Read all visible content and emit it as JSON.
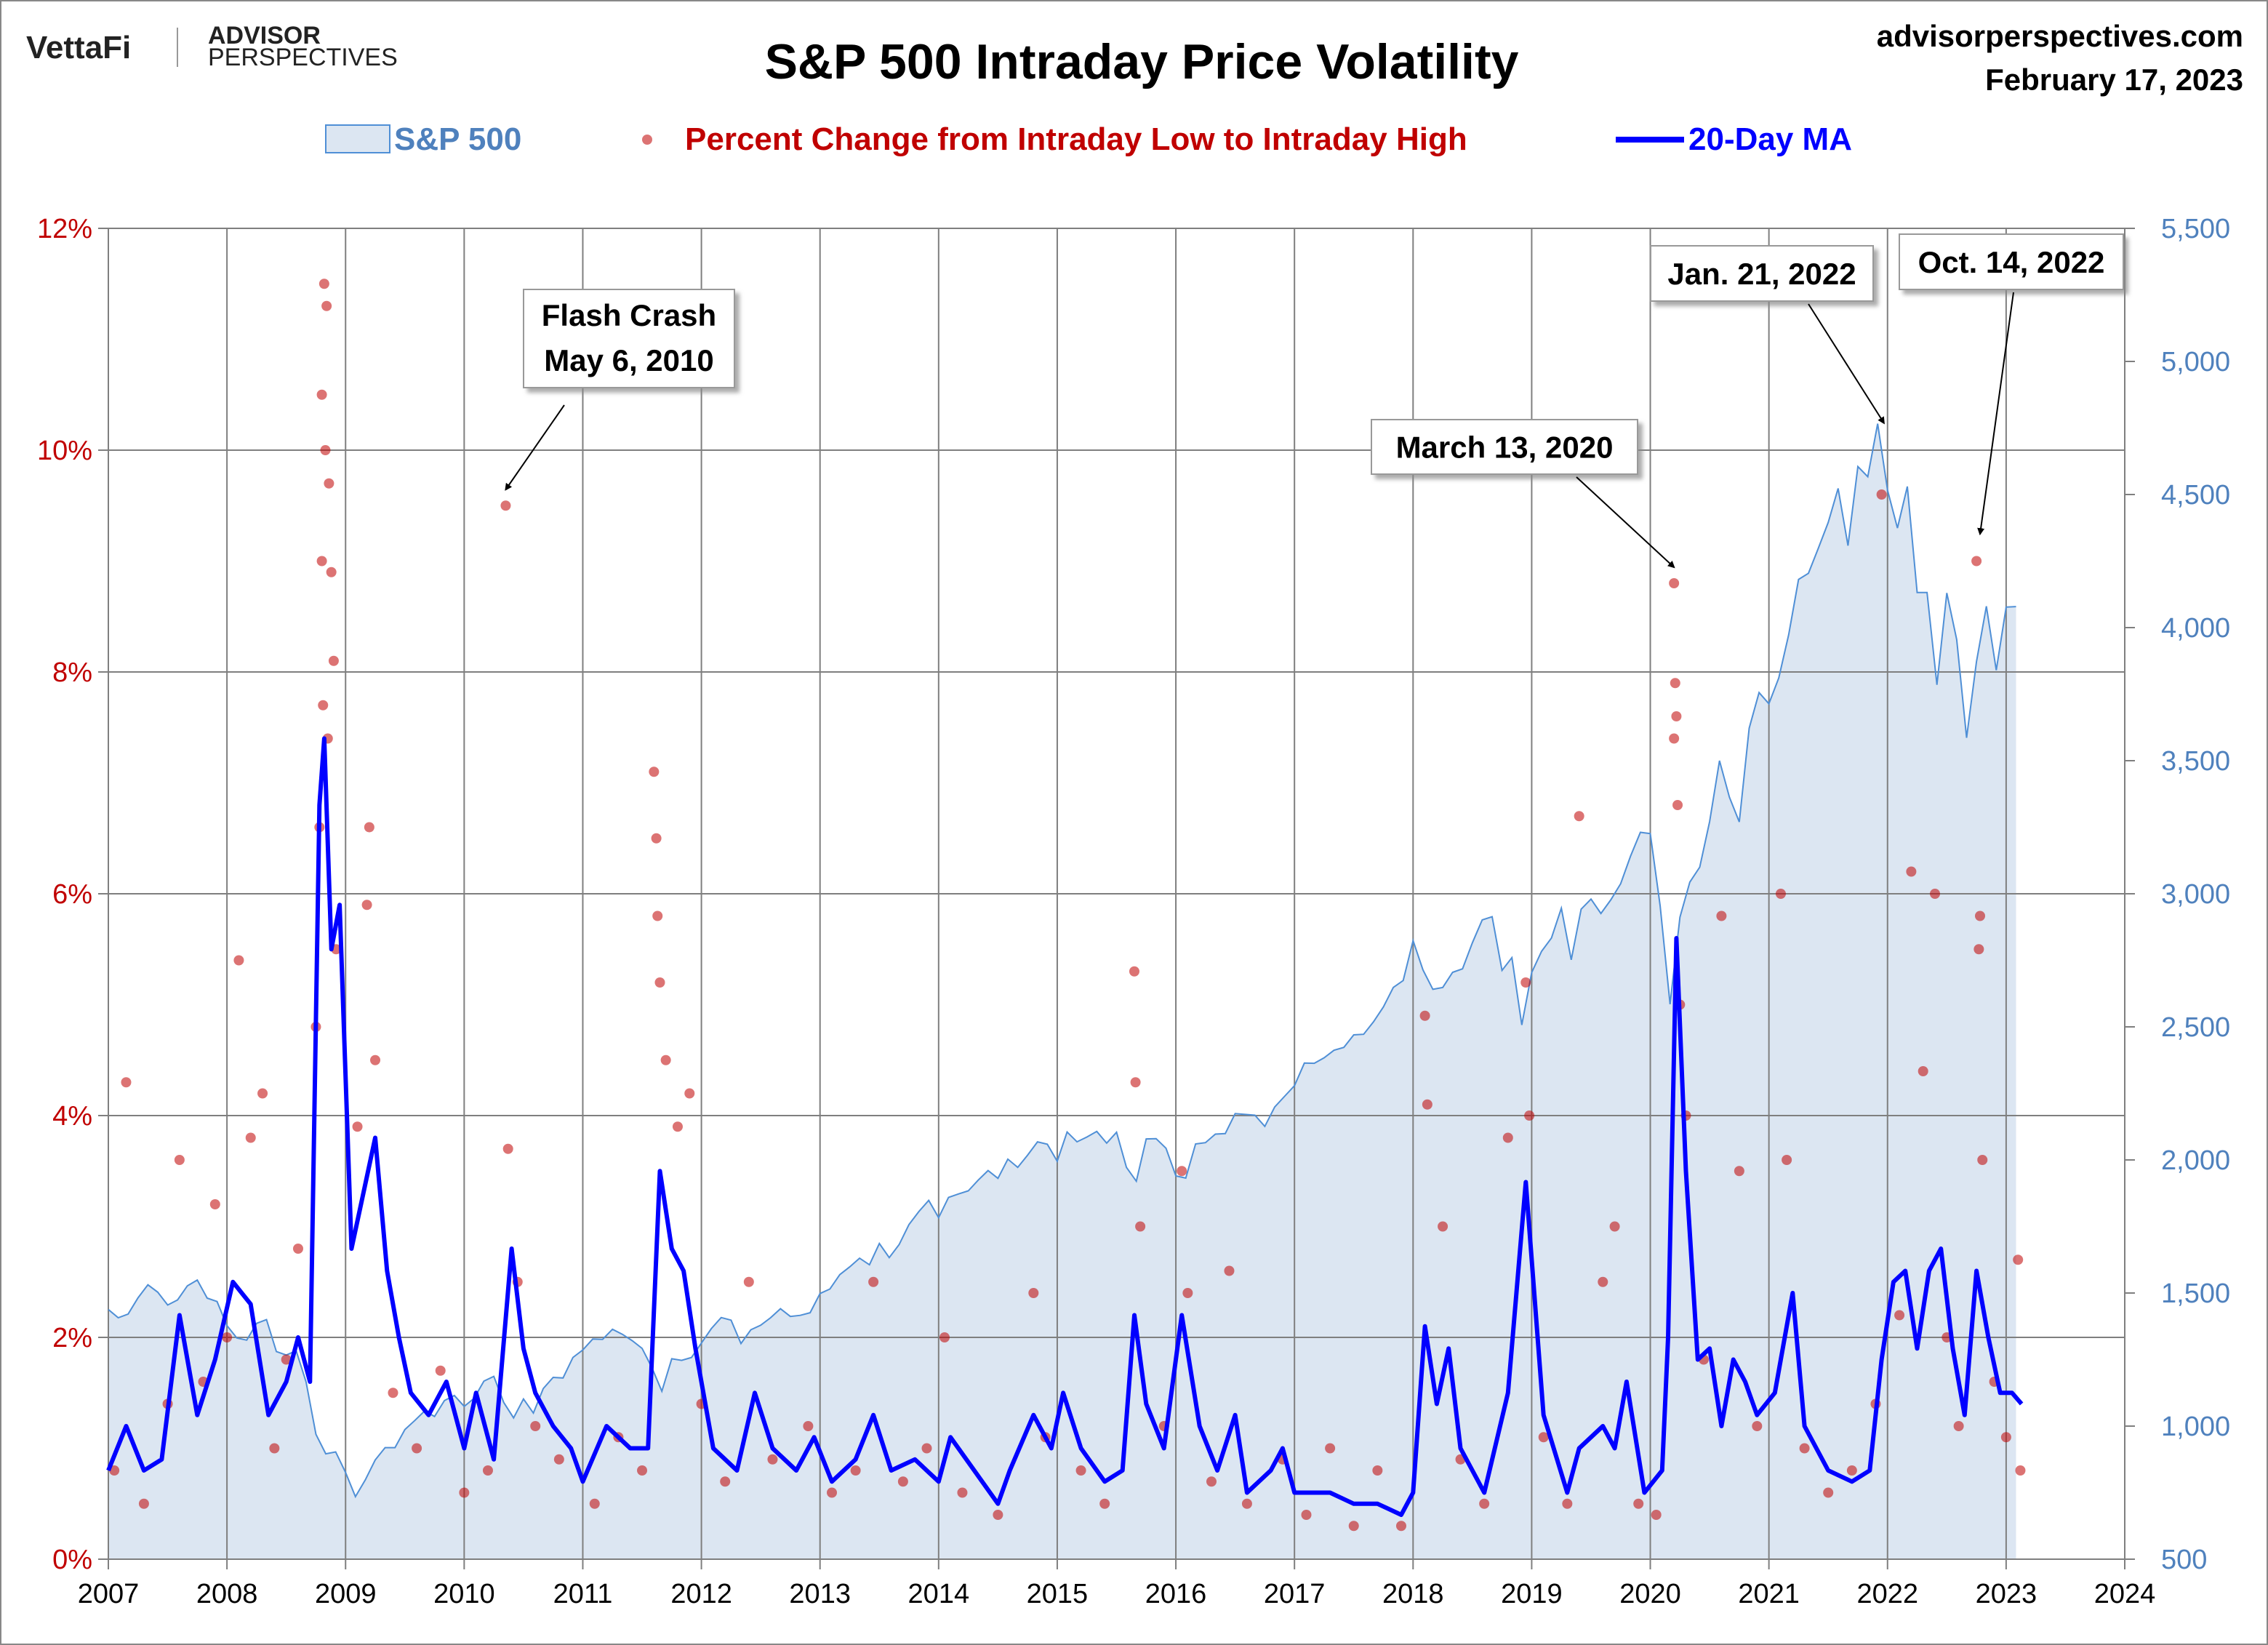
{
  "header": {
    "logo_vettafi": "VettaFi",
    "logo_advisor": "ADVISOR",
    "logo_perspectives": "PERSPECTIVES",
    "site": "advisorperspectives.com",
    "date": "February 17, 2023"
  },
  "chart_data": {
    "type": "line",
    "title": "S&P 500 Intraday Price Volatility",
    "legend_position": "top",
    "grid": true,
    "legend": {
      "sp500": "S&P 500",
      "scatter": "Percent Change from Intraday Low to Intraday High",
      "ma": "20-Day MA"
    },
    "colors": {
      "sp500_fill": "#dce6f2",
      "sp500_line": "#4f8fd6",
      "scatter": "#c00000",
      "ma": "#0000ff",
      "left_axis": "#c00000",
      "right_axis": "#4f81bd"
    },
    "x_ticks": [
      "2007",
      "2008",
      "2009",
      "2010",
      "2011",
      "2012",
      "2013",
      "2014",
      "2015",
      "2016",
      "2017",
      "2018",
      "2019",
      "2020",
      "2021",
      "2022",
      "2023",
      "2024"
    ],
    "xlim": [
      2007,
      2024
    ],
    "y_left": {
      "ticks": [
        "0%",
        "2%",
        "4%",
        "6%",
        "8%",
        "10%",
        "12%"
      ],
      "lim": [
        0,
        12
      ]
    },
    "y_right": {
      "ticks": [
        "500",
        "1,000",
        "1,500",
        "2,000",
        "2,500",
        "3,000",
        "3,500",
        "4,000",
        "4,500",
        "5,000",
        "5,500"
      ],
      "lim": [
        500,
        5500
      ]
    },
    "sp500_monthly": {
      "start": "2007-01",
      "values": [
        1438,
        1407,
        1421,
        1482,
        1531,
        1503,
        1455,
        1474,
        1527,
        1549,
        1481,
        1468,
        1378,
        1331,
        1323,
        1386,
        1400,
        1280,
        1267,
        1283,
        1166,
        969,
        896,
        903,
        826,
        735,
        798,
        873,
        919,
        919,
        987,
        1021,
        1057,
        1036,
        1096,
        1115,
        1074,
        1104,
        1169,
        1187,
        1089,
        1031,
        1102,
        1049,
        1141,
        1183,
        1181,
        1258,
        1286,
        1327,
        1326,
        1364,
        1345,
        1321,
        1292,
        1219,
        1131,
        1253,
        1247,
        1258,
        1312,
        1366,
        1408,
        1398,
        1310,
        1362,
        1379,
        1407,
        1441,
        1412,
        1416,
        1426,
        1498,
        1515,
        1569,
        1598,
        1631,
        1606,
        1686,
        1633,
        1682,
        1757,
        1806,
        1848,
        1783,
        1859,
        1872,
        1884,
        1924,
        1960,
        1931,
        2003,
        1972,
        2018,
        2068,
        2059,
        1995,
        2105,
        2068,
        2086,
        2107,
        2063,
        2104,
        1972,
        1920,
        2079,
        2080,
        2044,
        1940,
        1932,
        2060,
        2065,
        2097,
        2099,
        2174,
        2171,
        2168,
        2126,
        2199,
        2239,
        2279,
        2364,
        2363,
        2384,
        2412,
        2423,
        2470,
        2472,
        2519,
        2575,
        2648,
        2674,
        2824,
        2714,
        2641,
        2648,
        2705,
        2718,
        2816,
        2902,
        2914,
        2712,
        2760,
        2507,
        2704,
        2784,
        2834,
        2946,
        2752,
        2942,
        2980,
        2926,
        2977,
        3038,
        3141,
        3231,
        3226,
        2954,
        2585,
        2912,
        3044,
        3100,
        3271,
        3500,
        3363,
        3270,
        3622,
        3756,
        3714,
        3811,
        3973,
        4181,
        4204,
        4298,
        4395,
        4523,
        4308,
        4605,
        4567,
        4766,
        4516,
        4374,
        4530,
        4132,
        4132,
        3785,
        4130,
        3955,
        3586,
        3872,
        4080,
        3840,
        4077,
        4079
      ]
    },
    "ma_20day": [
      [
        2007.0,
        0.8
      ],
      [
        2007.15,
        1.2
      ],
      [
        2007.3,
        0.8
      ],
      [
        2007.45,
        0.9
      ],
      [
        2007.6,
        2.2
      ],
      [
        2007.75,
        1.3
      ],
      [
        2007.9,
        1.8
      ],
      [
        2008.05,
        2.5
      ],
      [
        2008.2,
        2.3
      ],
      [
        2008.35,
        1.3
      ],
      [
        2008.5,
        1.6
      ],
      [
        2008.6,
        2.0
      ],
      [
        2008.7,
        1.6
      ],
      [
        2008.78,
        6.8
      ],
      [
        2008.82,
        7.4
      ],
      [
        2008.88,
        5.5
      ],
      [
        2008.95,
        5.9
      ],
      [
        2009.05,
        2.8
      ],
      [
        2009.15,
        3.3
      ],
      [
        2009.25,
        3.8
      ],
      [
        2009.35,
        2.6
      ],
      [
        2009.45,
        2.0
      ],
      [
        2009.55,
        1.5
      ],
      [
        2009.7,
        1.3
      ],
      [
        2009.85,
        1.6
      ],
      [
        2010.0,
        1.0
      ],
      [
        2010.1,
        1.5
      ],
      [
        2010.25,
        0.9
      ],
      [
        2010.4,
        2.8
      ],
      [
        2010.5,
        1.9
      ],
      [
        2010.6,
        1.5
      ],
      [
        2010.75,
        1.2
      ],
      [
        2010.9,
        1.0
      ],
      [
        2011.0,
        0.7
      ],
      [
        2011.2,
        1.2
      ],
      [
        2011.4,
        1.0
      ],
      [
        2011.55,
        1.0
      ],
      [
        2011.65,
        3.5
      ],
      [
        2011.75,
        2.8
      ],
      [
        2011.85,
        2.6
      ],
      [
        2011.95,
        1.9
      ],
      [
        2012.1,
        1.0
      ],
      [
        2012.3,
        0.8
      ],
      [
        2012.45,
        1.5
      ],
      [
        2012.6,
        1.0
      ],
      [
        2012.8,
        0.8
      ],
      [
        2012.95,
        1.1
      ],
      [
        2013.1,
        0.7
      ],
      [
        2013.3,
        0.9
      ],
      [
        2013.45,
        1.3
      ],
      [
        2013.6,
        0.8
      ],
      [
        2013.8,
        0.9
      ],
      [
        2014.0,
        0.7
      ],
      [
        2014.1,
        1.1
      ],
      [
        2014.3,
        0.8
      ],
      [
        2014.5,
        0.5
      ],
      [
        2014.6,
        0.8
      ],
      [
        2014.8,
        1.3
      ],
      [
        2014.95,
        1.0
      ],
      [
        2015.05,
        1.5
      ],
      [
        2015.2,
        1.0
      ],
      [
        2015.4,
        0.7
      ],
      [
        2015.55,
        0.8
      ],
      [
        2015.65,
        2.2
      ],
      [
        2015.75,
        1.4
      ],
      [
        2015.9,
        1.0
      ],
      [
        2016.05,
        2.2
      ],
      [
        2016.2,
        1.2
      ],
      [
        2016.35,
        0.8
      ],
      [
        2016.5,
        1.3
      ],
      [
        2016.6,
        0.6
      ],
      [
        2016.8,
        0.8
      ],
      [
        2016.9,
        1.0
      ],
      [
        2017.0,
        0.6
      ],
      [
        2017.3,
        0.6
      ],
      [
        2017.5,
        0.5
      ],
      [
        2017.7,
        0.5
      ],
      [
        2017.9,
        0.4
      ],
      [
        2018.0,
        0.6
      ],
      [
        2018.1,
        2.1
      ],
      [
        2018.2,
        1.4
      ],
      [
        2018.3,
        1.9
      ],
      [
        2018.4,
        1.0
      ],
      [
        2018.6,
        0.6
      ],
      [
        2018.8,
        1.5
      ],
      [
        2018.95,
        3.4
      ],
      [
        2019.1,
        1.3
      ],
      [
        2019.3,
        0.6
      ],
      [
        2019.4,
        1.0
      ],
      [
        2019.6,
        1.2
      ],
      [
        2019.7,
        1.0
      ],
      [
        2019.8,
        1.6
      ],
      [
        2019.95,
        0.6
      ],
      [
        2020.1,
        0.8
      ],
      [
        2020.15,
        2.0
      ],
      [
        2020.22,
        5.6
      ],
      [
        2020.3,
        3.5
      ],
      [
        2020.4,
        1.8
      ],
      [
        2020.5,
        1.9
      ],
      [
        2020.6,
        1.2
      ],
      [
        2020.7,
        1.8
      ],
      [
        2020.8,
        1.6
      ],
      [
        2020.9,
        1.3
      ],
      [
        2021.05,
        1.5
      ],
      [
        2021.2,
        2.4
      ],
      [
        2021.3,
        1.2
      ],
      [
        2021.5,
        0.8
      ],
      [
        2021.7,
        0.7
      ],
      [
        2021.85,
        0.8
      ],
      [
        2021.95,
        1.8
      ],
      [
        2022.05,
        2.5
      ],
      [
        2022.15,
        2.6
      ],
      [
        2022.25,
        1.9
      ],
      [
        2022.35,
        2.6
      ],
      [
        2022.45,
        2.8
      ],
      [
        2022.55,
        1.9
      ],
      [
        2022.65,
        1.3
      ],
      [
        2022.75,
        2.6
      ],
      [
        2022.85,
        2.0
      ],
      [
        2022.95,
        1.5
      ],
      [
        2023.05,
        1.5
      ],
      [
        2023.13,
        1.4
      ]
    ],
    "intraday_range_points": [
      [
        2008.82,
        11.5
      ],
      [
        2008.84,
        11.3
      ],
      [
        2008.8,
        10.5
      ],
      [
        2008.83,
        10.0
      ],
      [
        2008.86,
        9.7
      ],
      [
        2008.8,
        9.0
      ],
      [
        2008.88,
        8.9
      ],
      [
        2008.9,
        8.1
      ],
      [
        2008.81,
        7.7
      ],
      [
        2008.85,
        7.4
      ],
      [
        2008.78,
        6.6
      ],
      [
        2008.92,
        5.5
      ],
      [
        2008.75,
        4.8
      ],
      [
        2009.2,
        6.6
      ],
      [
        2009.18,
        5.9
      ],
      [
        2009.25,
        4.5
      ],
      [
        2009.1,
        3.9
      ],
      [
        2008.1,
        5.4
      ],
      [
        2007.15,
        4.3
      ],
      [
        2007.6,
        3.6
      ],
      [
        2007.9,
        3.2
      ],
      [
        2008.2,
        3.8
      ],
      [
        2008.3,
        4.2
      ],
      [
        2008.6,
        2.8
      ],
      [
        2010.35,
        9.5
      ],
      [
        2010.37,
        3.7
      ],
      [
        2010.45,
        2.5
      ],
      [
        2011.6,
        7.1
      ],
      [
        2011.62,
        6.5
      ],
      [
        2011.63,
        5.8
      ],
      [
        2011.65,
        5.2
      ],
      [
        2011.7,
        4.5
      ],
      [
        2011.8,
        3.9
      ],
      [
        2011.9,
        4.2
      ],
      [
        2012.4,
        2.5
      ],
      [
        2013.45,
        2.5
      ],
      [
        2014.05,
        2.0
      ],
      [
        2014.8,
        2.4
      ],
      [
        2015.65,
        5.3
      ],
      [
        2015.66,
        4.3
      ],
      [
        2015.7,
        3.0
      ],
      [
        2016.05,
        3.5
      ],
      [
        2016.1,
        2.4
      ],
      [
        2016.45,
        2.6
      ],
      [
        2017.3,
        1.0
      ],
      [
        2017.7,
        0.8
      ],
      [
        2018.1,
        4.9
      ],
      [
        2018.12,
        4.1
      ],
      [
        2018.25,
        3.0
      ],
      [
        2018.8,
        3.8
      ],
      [
        2018.95,
        5.2
      ],
      [
        2018.98,
        4.0
      ],
      [
        2019.4,
        6.7
      ],
      [
        2019.6,
        2.5
      ],
      [
        2019.7,
        3.0
      ],
      [
        2020.2,
        8.8
      ],
      [
        2020.21,
        7.9
      ],
      [
        2020.22,
        7.6
      ],
      [
        2020.2,
        7.4
      ],
      [
        2020.23,
        6.8
      ],
      [
        2020.25,
        5.0
      ],
      [
        2020.3,
        4.0
      ],
      [
        2020.6,
        5.8
      ],
      [
        2020.75,
        3.5
      ],
      [
        2021.1,
        6.0
      ],
      [
        2021.15,
        3.6
      ],
      [
        2021.95,
        9.6
      ],
      [
        2022.2,
        6.2
      ],
      [
        2022.4,
        6.0
      ],
      [
        2022.3,
        4.4
      ],
      [
        2022.75,
        9.0
      ],
      [
        2022.78,
        5.8
      ],
      [
        2022.77,
        5.5
      ],
      [
        2022.8,
        3.6
      ],
      [
        2023.1,
        2.7
      ],
      [
        2007.05,
        0.8
      ],
      [
        2007.3,
        0.5
      ],
      [
        2007.5,
        1.4
      ],
      [
        2007.8,
        1.6
      ],
      [
        2008.0,
        2.0
      ],
      [
        2008.4,
        1.0
      ],
      [
        2008.5,
        1.8
      ],
      [
        2009.4,
        1.5
      ],
      [
        2009.6,
        1.0
      ],
      [
        2009.8,
        1.7
      ],
      [
        2010.0,
        0.6
      ],
      [
        2010.2,
        0.8
      ],
      [
        2010.6,
        1.2
      ],
      [
        2010.8,
        0.9
      ],
      [
        2011.1,
        0.5
      ],
      [
        2011.3,
        1.1
      ],
      [
        2011.5,
        0.8
      ],
      [
        2012.0,
        1.4
      ],
      [
        2012.2,
        0.7
      ],
      [
        2012.6,
        0.9
      ],
      [
        2012.9,
        1.2
      ],
      [
        2013.1,
        0.6
      ],
      [
        2013.3,
        0.8
      ],
      [
        2013.7,
        0.7
      ],
      [
        2013.9,
        1.0
      ],
      [
        2014.2,
        0.6
      ],
      [
        2014.5,
        0.4
      ],
      [
        2014.9,
        1.1
      ],
      [
        2015.2,
        0.8
      ],
      [
        2015.4,
        0.5
      ],
      [
        2015.9,
        1.2
      ],
      [
        2016.3,
        0.7
      ],
      [
        2016.6,
        0.5
      ],
      [
        2016.9,
        0.9
      ],
      [
        2017.1,
        0.4
      ],
      [
        2017.5,
        0.3
      ],
      [
        2017.9,
        0.3
      ],
      [
        2018.4,
        0.9
      ],
      [
        2018.6,
        0.5
      ],
      [
        2019.1,
        1.1
      ],
      [
        2019.3,
        0.5
      ],
      [
        2019.9,
        0.5
      ],
      [
        2020.05,
        0.4
      ],
      [
        2020.45,
        1.8
      ],
      [
        2020.9,
        1.2
      ],
      [
        2021.3,
        1.0
      ],
      [
        2021.5,
        0.6
      ],
      [
        2021.7,
        0.8
      ],
      [
        2021.9,
        1.4
      ],
      [
        2022.1,
        2.2
      ],
      [
        2022.5,
        2.0
      ],
      [
        2022.6,
        1.2
      ],
      [
        2022.9,
        1.6
      ],
      [
        2023.0,
        1.1
      ],
      [
        2023.12,
        0.8
      ]
    ],
    "annotations": [
      {
        "text": [
          "Flash Crash",
          "May 6, 2010"
        ],
        "target_x": 2010.35,
        "target_y": 9.5
      },
      {
        "text": [
          "March 13, 2020"
        ],
        "target_x": 2020.2,
        "target_y": 8.8
      },
      {
        "text": [
          "Jan. 21, 2022"
        ],
        "target_x": 2021.97,
        "target_y": 10.1
      },
      {
        "text": [
          "Oct. 14, 2022"
        ],
        "target_x": 2022.78,
        "target_y": 9.1
      }
    ]
  }
}
